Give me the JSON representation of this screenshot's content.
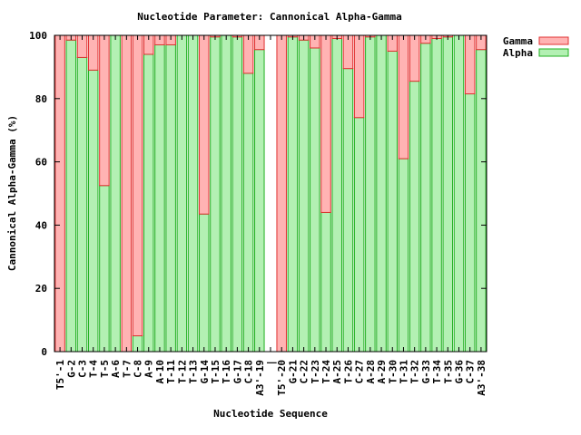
{
  "colors": {
    "gamma_fill": "#ffb3b3",
    "gamma_stroke": "#e03030",
    "alpha_fill": "#b3f0b3",
    "alpha_stroke": "#20b020",
    "axis": "#000000"
  },
  "chart_data": {
    "type": "bar",
    "stacked": true,
    "title": "Nucleotide Parameter: Cannonical Alpha-Gamma",
    "xlabel": "Nucleotide Sequence",
    "ylabel": "Cannonical Alpha-Gamma (%)",
    "ylim": [
      0,
      100
    ],
    "yticks": [
      0,
      20,
      40,
      60,
      80,
      100
    ],
    "legend_position": "top-right, outside plot",
    "grid": false,
    "categories": [
      "T5'-1",
      "G-2",
      "C-3",
      "T-4",
      "T-5",
      "A-6",
      "T-7",
      "C-8",
      "A-9",
      "A-10",
      "T-11",
      "T-12",
      "T-13",
      "G-14",
      "T-15",
      "T-16",
      "G-17",
      "C-18",
      "A3'-19",
      "|",
      "T5'-20",
      "G-21",
      "C-22",
      "T-23",
      "T-24",
      "A-25",
      "T-26",
      "C-27",
      "A-28",
      "A-29",
      "T-30",
      "T-31",
      "T-32",
      "G-33",
      "T-34",
      "T-35",
      "G-36",
      "C-37",
      "A3'-38"
    ],
    "series": [
      {
        "name": "Alpha",
        "values": [
          0,
          98.5,
          93,
          89,
          52.5,
          100,
          0,
          5,
          94,
          97,
          97,
          100,
          100,
          43.5,
          99.5,
          100,
          99.5,
          88,
          95.5,
          null,
          0,
          99.5,
          98.5,
          96,
          44,
          99,
          89.5,
          74,
          99.5,
          100,
          95,
          61,
          85.5,
          97.5,
          99,
          99.5,
          100,
          81.5,
          95.5
        ]
      },
      {
        "name": "Gamma",
        "values": [
          100,
          1.5,
          7,
          11,
          47.5,
          0,
          100,
          95,
          6,
          3,
          3,
          0,
          0,
          56.5,
          0.5,
          0,
          0.5,
          12,
          4.5,
          null,
          100,
          0.5,
          1.5,
          4,
          56,
          1,
          10.5,
          26,
          0.5,
          0,
          5,
          39,
          14.5,
          2.5,
          1,
          0.5,
          0,
          18.5,
          4.5
        ]
      }
    ]
  }
}
